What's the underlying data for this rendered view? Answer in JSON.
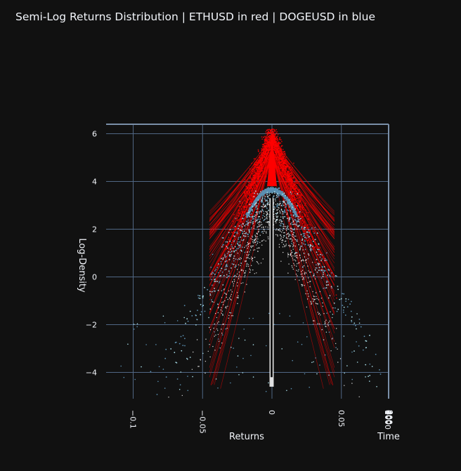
{
  "title": "Semi-Log Returns Distribution | ETHUSD in red | DOGEUSD in blue",
  "colors": {
    "background": "#111111",
    "grid": "#506784",
    "eth": "#ff0000",
    "doge": "#5a8fb0",
    "doge_light": "#a6dbe6",
    "white_points": "#ffffff"
  },
  "chart_data": {
    "type": "scatter",
    "title": "Semi-Log Returns Distribution | ETHUSD in red | DOGEUSD in blue",
    "xlabel": "Returns",
    "ylabel": "Log-Density",
    "zlabel": "Time",
    "xlim": [
      -0.12,
      0.085
    ],
    "ylim": [
      -5.2,
      6.4
    ],
    "x_ticks": [
      -0.1,
      -0.05,
      0,
      0.05
    ],
    "x_tick_labels": [
      "−0.1",
      "−0.05",
      "0",
      "0.05"
    ],
    "y_ticks": [
      6,
      4,
      2,
      0,
      -2,
      -4
    ],
    "y_tick_labels": [
      "6",
      "4",
      "2",
      "0",
      "−2",
      "−4"
    ],
    "time_tick_labels": [
      "1000",
      "800",
      "600",
      "400",
      "200",
      "0"
    ],
    "grid": true,
    "series": [
      {
        "name": "ETHUSD",
        "color": "#ff0000",
        "peak_log_density": 6.1,
        "center": 0.0,
        "approx_range": [
          -0.04,
          0.04
        ]
      },
      {
        "name": "DOGEUSD",
        "color": "#5a8fb0",
        "peak_log_density": 3.65,
        "center": 0.0,
        "approx_range": [
          -0.11,
          0.08
        ]
      }
    ]
  }
}
